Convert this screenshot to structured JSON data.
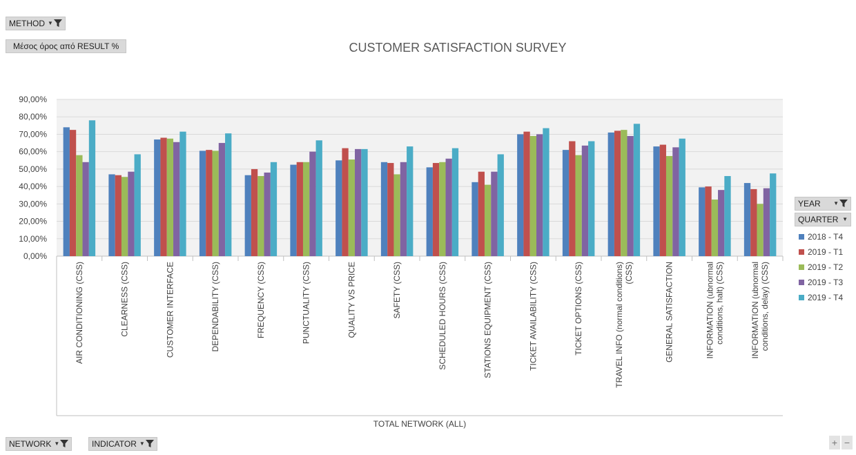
{
  "filters": {
    "method": "METHOD",
    "value_field": "Μέσος όρος από RESULT %",
    "year": "YEAR",
    "quarter": "QUARTER",
    "network": "NETWORK",
    "indicator": "INDICATOR"
  },
  "zoom": {
    "plus": "+",
    "minus": "−"
  },
  "colors": {
    "plot_bg": "#f2f2f2",
    "grid": "#d9d9d9",
    "axis": "#bfbfbf",
    "button": "#d9d9d9"
  },
  "chart_data": {
    "type": "bar",
    "title": "CUSTOMER SATISFACTION SURVEY",
    "xlabel": "TOTAL NETWORK (ALL)",
    "ylabel": "",
    "ylim": [
      0,
      90
    ],
    "y_ticks": [
      "0,00%",
      "10,00%",
      "20,00%",
      "30,00%",
      "40,00%",
      "50,00%",
      "60,00%",
      "70,00%",
      "80,00%",
      "90,00%"
    ],
    "grid": true,
    "legend_position": "right",
    "categories": [
      "AIR CONDITIONING (CSS)",
      "CLEARNESS (CSS)",
      "CUSTOMER INTERFACE",
      "DEPENDABILITY (CSS)",
      "FREQUENCY (CSS)",
      "PUNCTUALITY (CSS)",
      "QUALITY VS PRICE",
      "SAFETY (CSS)",
      "SCHEDULED HOURS (CSS)",
      "STATIONS EQUIPMENT (CSS)",
      "TICKET AVAILABILITY (CSS)",
      "TICKET OPTIONS (CSS)",
      "TRAVEL INFO (normal conditions) (CSS)",
      "GENERAL SATISFACTION",
      "INFORMATION (ubnormal conditions, halt) (CSS)",
      "INFORMATION (ubnormal conditions, delay) (CSS)"
    ],
    "category_lines": [
      [
        "AIR CONDITIONING (CSS)"
      ],
      [
        "CLEARNESS (CSS)"
      ],
      [
        "CUSTOMER INTERFACE"
      ],
      [
        "DEPENDABILITY (CSS)"
      ],
      [
        "FREQUENCY (CSS)"
      ],
      [
        "PUNCTUALITY (CSS)"
      ],
      [
        "QUALITY VS PRICE"
      ],
      [
        "SAFETY (CSS)"
      ],
      [
        "SCHEDULED HOURS (CSS)"
      ],
      [
        "STATIONS EQUIPMENT (CSS)"
      ],
      [
        "TICKET AVAILABILITY (CSS)"
      ],
      [
        "TICKET OPTIONS (CSS)"
      ],
      [
        "TRAVEL INFO (normal conditions)",
        "(CSS)"
      ],
      [
        "GENERAL SATISFACTION"
      ],
      [
        "INFORMATION (ubnormal",
        "conditions, halt) (CSS)"
      ],
      [
        "INFORMATION (ubnormal",
        "conditions, delay) (CSS)"
      ]
    ],
    "series": [
      {
        "name": "2018 - T4",
        "color": "#4f81bd",
        "values": [
          74.0,
          47.0,
          67.0,
          60.5,
          46.5,
          52.5,
          55.0,
          54.0,
          51.0,
          42.5,
          70.0,
          61.0,
          71.0,
          63.0,
          39.5,
          42.0
        ]
      },
      {
        "name": "2019 - T1",
        "color": "#c0504d",
        "values": [
          72.5,
          46.5,
          68.0,
          61.0,
          50.0,
          54.0,
          62.0,
          53.5,
          53.5,
          48.5,
          71.5,
          66.0,
          72.0,
          64.0,
          40.0,
          38.5
        ]
      },
      {
        "name": "2019 - T2",
        "color": "#9bbb59",
        "values": [
          58.0,
          45.5,
          67.5,
          60.5,
          46.0,
          54.0,
          55.5,
          47.0,
          54.0,
          41.0,
          69.0,
          58.0,
          72.5,
          57.5,
          32.5,
          30.0
        ]
      },
      {
        "name": "2019 - T3",
        "color": "#8064a2",
        "values": [
          54.0,
          48.5,
          65.5,
          65.0,
          48.0,
          60.0,
          61.5,
          54.0,
          56.0,
          48.5,
          70.0,
          63.5,
          69.0,
          62.5,
          38.0,
          39.0
        ]
      },
      {
        "name": "2019 - T4",
        "color": "#4bacc6",
        "values": [
          78.0,
          58.5,
          71.5,
          70.5,
          54.0,
          66.5,
          61.5,
          63.0,
          62.0,
          58.5,
          73.5,
          66.0,
          76.0,
          67.5,
          46.0,
          47.5
        ]
      }
    ]
  }
}
